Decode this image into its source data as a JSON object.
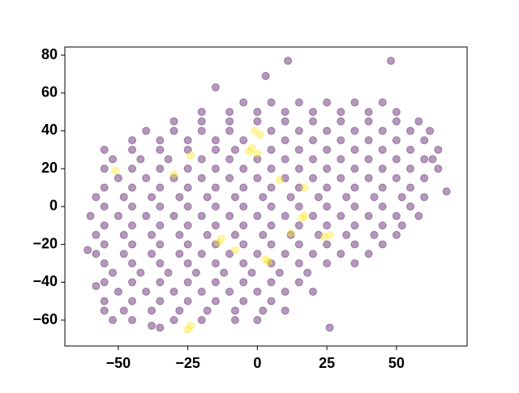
{
  "chart_data": {
    "type": "scatter",
    "xlim": [
      -69.2,
      75.4
    ],
    "ylim": [
      -73.7,
      84.3
    ],
    "xticks": [
      {
        "value": -50,
        "label": "−50"
      },
      {
        "value": -25,
        "label": "−25"
      },
      0,
      25,
      50
    ],
    "yticks": [
      {
        "value": -60,
        "label": "−60"
      },
      {
        "value": -40,
        "label": "−40"
      },
      {
        "value": -20,
        "label": "−20"
      },
      0,
      20,
      40,
      60,
      80
    ],
    "alpha": 0.4,
    "series": [
      {
        "color": "#440154",
        "x": [
          -5,
          5,
          15,
          25,
          35,
          45,
          -20,
          -10,
          0,
          10,
          20,
          30,
          40,
          50,
          -30,
          -20,
          -10,
          0,
          10,
          20,
          30,
          40,
          50,
          58,
          -40,
          -30,
          -20,
          -10,
          5,
          15,
          25,
          35,
          45,
          55,
          62,
          -45,
          -35,
          -25,
          -15,
          -5,
          10,
          20,
          30,
          40,
          50,
          60,
          -55,
          -45,
          -35,
          -25,
          -15,
          -8,
          5,
          15,
          25,
          35,
          45,
          55,
          65,
          -52,
          -42,
          -32,
          -20,
          -10,
          0,
          10,
          20,
          30,
          40,
          50,
          60,
          63,
          -55,
          -45,
          -35,
          -25,
          -15,
          -5,
          5,
          15,
          25,
          35,
          45,
          55,
          65,
          -50,
          -40,
          -30,
          -20,
          -10,
          0,
          10,
          20,
          30,
          40,
          50,
          60,
          -55,
          -45,
          -35,
          -25,
          -15,
          -5,
          5,
          15,
          25,
          35,
          45,
          55,
          -58,
          -48,
          -38,
          -28,
          -18,
          -8,
          2,
          12,
          22,
          32,
          42,
          52,
          60,
          -55,
          -45,
          -35,
          -25,
          -15,
          -5,
          5,
          15,
          25,
          35,
          45,
          55,
          -60,
          -50,
          -40,
          -30,
          -20,
          -10,
          0,
          10,
          20,
          30,
          40,
          50,
          58,
          -55,
          -45,
          -35,
          -25,
          -15,
          -5,
          5,
          15,
          25,
          35,
          45,
          52,
          -58,
          -48,
          -38,
          -28,
          -18,
          -8,
          2,
          12,
          22,
          32,
          42,
          50,
          -55,
          -45,
          -35,
          -25,
          -15,
          -5,
          5,
          15,
          25,
          35,
          45,
          -58,
          -48,
          -38,
          -28,
          -20,
          -10,
          0,
          10,
          20,
          30,
          40,
          -55,
          -45,
          -35,
          -25,
          -15,
          -5,
          5,
          15,
          25,
          35,
          -52,
          -42,
          -32,
          -22,
          -12,
          -2,
          8,
          18,
          -55,
          -45,
          -35,
          -25,
          -15,
          -5,
          5,
          15,
          -50,
          -40,
          -30,
          -20,
          -10,
          0,
          10,
          20,
          -55,
          -45,
          -35,
          -25,
          -15,
          -5,
          5,
          -55,
          -48,
          -38,
          -28,
          -18,
          -8,
          2,
          10,
          -52,
          -45,
          -30,
          -20,
          -8,
          0,
          11,
          48,
          3,
          -15,
          26,
          68,
          -61,
          -58,
          -38,
          -35
        ],
        "y": [
          55,
          55,
          55,
          55,
          55,
          55,
          50,
          50,
          50,
          50,
          50,
          50,
          50,
          50,
          45,
          45,
          45,
          45,
          45,
          45,
          45,
          45,
          45,
          45,
          40,
          40,
          40,
          40,
          40,
          40,
          40,
          40,
          40,
          40,
          40,
          35,
          35,
          35,
          35,
          35,
          35,
          35,
          35,
          35,
          35,
          35,
          30,
          30,
          30,
          30,
          30,
          30,
          30,
          30,
          30,
          30,
          30,
          30,
          30,
          25,
          25,
          25,
          25,
          25,
          25,
          25,
          25,
          25,
          25,
          25,
          25,
          25,
          20,
          20,
          20,
          20,
          20,
          20,
          20,
          20,
          20,
          20,
          20,
          20,
          20,
          15,
          15,
          15,
          15,
          15,
          15,
          15,
          15,
          15,
          15,
          15,
          15,
          10,
          10,
          10,
          10,
          10,
          10,
          10,
          10,
          10,
          10,
          10,
          10,
          5,
          5,
          5,
          5,
          5,
          5,
          5,
          5,
          5,
          5,
          5,
          5,
          5,
          0,
          0,
          0,
          0,
          0,
          0,
          0,
          0,
          0,
          0,
          0,
          0,
          -5,
          -5,
          -5,
          -5,
          -5,
          -5,
          -5,
          -5,
          -5,
          -5,
          -5,
          -5,
          -5,
          -10,
          -10,
          -10,
          -10,
          -10,
          -10,
          -10,
          -10,
          -10,
          -10,
          -10,
          -10,
          -15,
          -15,
          -15,
          -15,
          -15,
          -15,
          -15,
          -15,
          -15,
          -15,
          -15,
          -15,
          -20,
          -20,
          -20,
          -20,
          -20,
          -20,
          -20,
          -20,
          -20,
          -20,
          -20,
          -25,
          -25,
          -25,
          -25,
          -25,
          -25,
          -25,
          -25,
          -25,
          -25,
          -25,
          -30,
          -30,
          -30,
          -30,
          -30,
          -30,
          -30,
          -30,
          -30,
          -30,
          -35,
          -35,
          -35,
          -35,
          -35,
          -35,
          -35,
          -35,
          -40,
          -40,
          -40,
          -40,
          -40,
          -40,
          -40,
          -40,
          -45,
          -45,
          -45,
          -45,
          -45,
          -45,
          -45,
          -45,
          -50,
          -50,
          -50,
          -50,
          -50,
          -50,
          -50,
          -55,
          -55,
          -55,
          -55,
          -55,
          -55,
          -55,
          -55,
          -60,
          -60,
          -60,
          -60,
          -60,
          -60,
          77,
          77,
          69,
          63,
          -64,
          8,
          -23,
          -42,
          -63,
          -64
        ]
      },
      {
        "color": "#fde725",
        "x": [
          -3,
          -2,
          0,
          -1,
          1,
          -25,
          -24,
          -13,
          -14,
          3,
          4,
          24,
          26,
          16,
          17,
          17,
          8,
          -30,
          -24,
          -51,
          -8,
          12
        ],
        "y": [
          29,
          31,
          28,
          40,
          38,
          -65,
          -63,
          -17,
          -19,
          -28,
          -29,
          -16,
          -15,
          -6,
          -5,
          10,
          14,
          17,
          27,
          19,
          -23,
          -14
        ]
      }
    ]
  }
}
